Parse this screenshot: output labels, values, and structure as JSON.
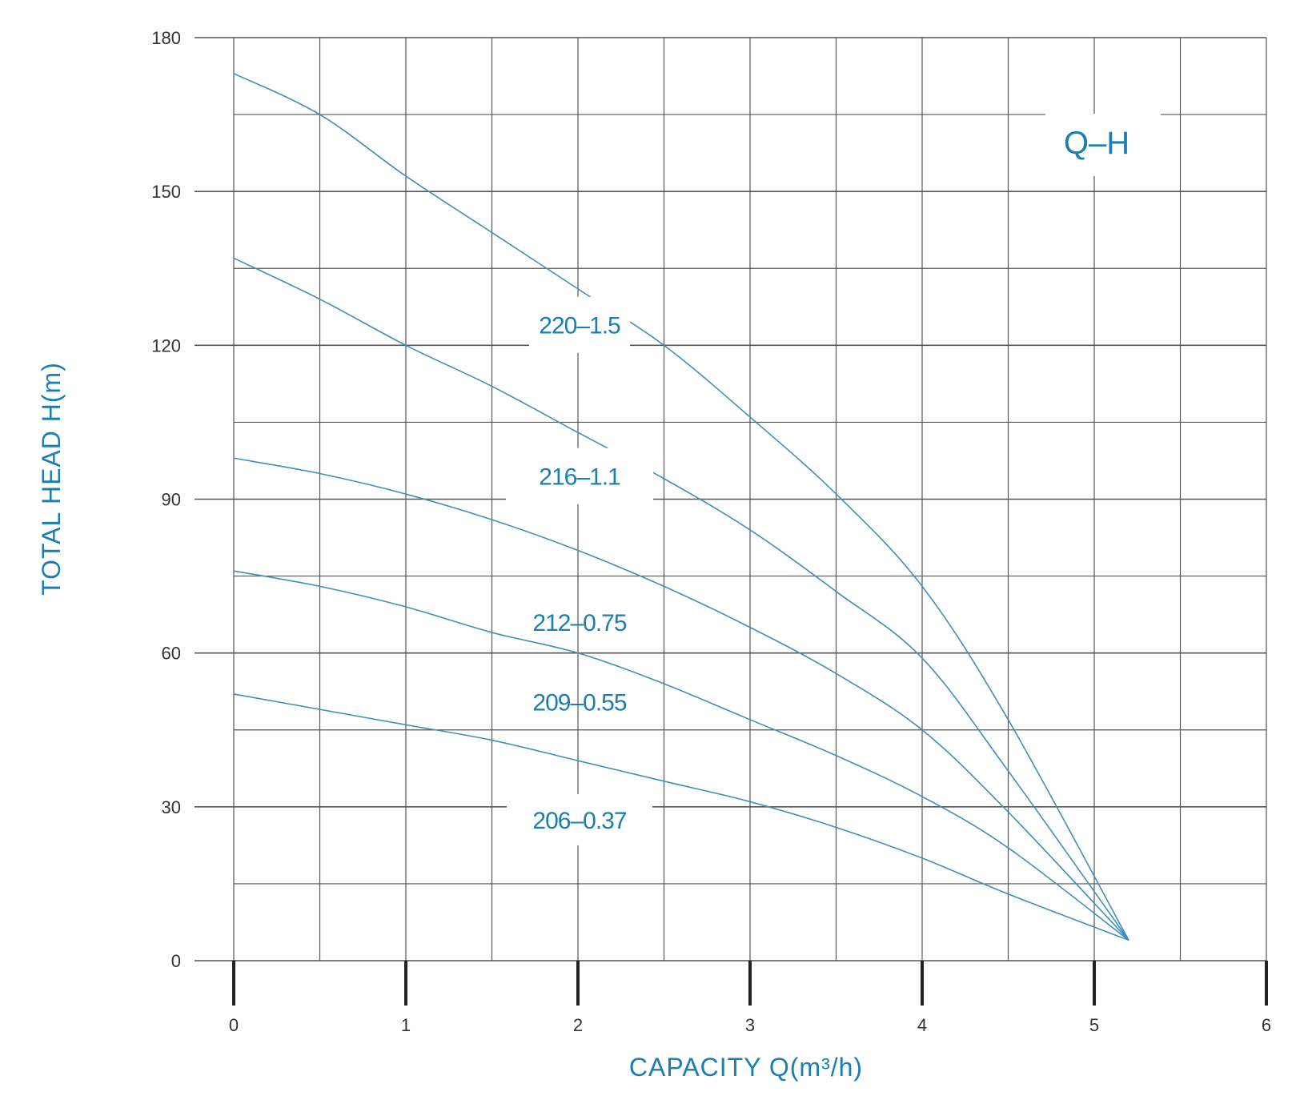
{
  "chart_data": {
    "type": "line",
    "title": "Q–H",
    "xlabel": "CAPACITY Q(m³/h)",
    "ylabel": "TOTAL HEAD H(m)",
    "xlim": [
      0,
      6
    ],
    "ylim": [
      0,
      180
    ],
    "xticks": [
      "0",
      "1",
      "2",
      "3",
      "4",
      "5",
      "6"
    ],
    "yticks": [
      "0",
      "30",
      "60",
      "90",
      "120",
      "150",
      "180"
    ],
    "grid": true,
    "colors": {
      "curve": "#3f8fb8",
      "label": "#1a7fae",
      "grid": "#555555",
      "axis": "#222222"
    },
    "series": [
      {
        "name": "220–1.5",
        "points": [
          [
            0,
            173
          ],
          [
            0.5,
            165
          ],
          [
            1,
            153
          ],
          [
            1.5,
            142
          ],
          [
            2,
            131
          ],
          [
            2.5,
            120
          ],
          [
            3,
            106
          ],
          [
            3.5,
            91
          ],
          [
            4,
            73
          ],
          [
            4.5,
            47
          ],
          [
            5.2,
            4
          ]
        ]
      },
      {
        "name": "216–1.1",
        "points": [
          [
            0,
            137
          ],
          [
            0.5,
            129
          ],
          [
            1,
            120
          ],
          [
            1.5,
            112
          ],
          [
            2,
            103
          ],
          [
            2.5,
            94
          ],
          [
            3,
            84
          ],
          [
            3.5,
            72
          ],
          [
            4,
            59
          ],
          [
            4.5,
            37
          ],
          [
            5.2,
            4
          ]
        ]
      },
      {
        "name": "212–0.75",
        "points": [
          [
            0,
            98
          ],
          [
            0.5,
            95
          ],
          [
            1,
            91
          ],
          [
            1.5,
            86
          ],
          [
            2,
            80
          ],
          [
            2.5,
            73
          ],
          [
            3,
            65
          ],
          [
            3.5,
            56
          ],
          [
            4,
            45
          ],
          [
            4.5,
            29
          ],
          [
            5.2,
            4
          ]
        ]
      },
      {
        "name": "209–0.55",
        "points": [
          [
            0,
            76
          ],
          [
            0.5,
            73
          ],
          [
            1,
            69
          ],
          [
            1.5,
            64
          ],
          [
            2,
            60
          ],
          [
            2.5,
            54
          ],
          [
            3,
            47
          ],
          [
            3.5,
            40
          ],
          [
            4,
            32
          ],
          [
            4.5,
            22
          ],
          [
            5.2,
            4
          ]
        ]
      },
      {
        "name": "206–0.37",
        "points": [
          [
            0,
            52
          ],
          [
            0.5,
            49
          ],
          [
            1,
            46
          ],
          [
            1.5,
            43
          ],
          [
            2,
            39
          ],
          [
            2.5,
            35
          ],
          [
            3,
            31
          ],
          [
            3.5,
            26
          ],
          [
            4,
            20
          ],
          [
            4.5,
            13
          ],
          [
            5.2,
            4
          ]
        ]
      }
    ]
  }
}
